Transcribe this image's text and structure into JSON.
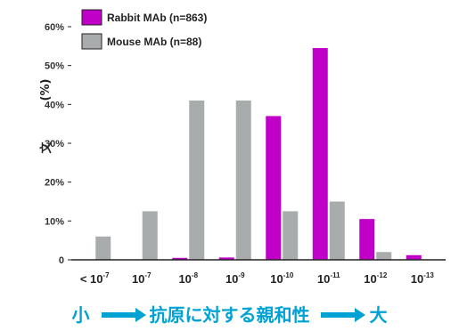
{
  "chart_data": {
    "type": "bar",
    "title": "",
    "xlabel": "",
    "ylabel": "(%)",
    "ylabel_char": "文",
    "ylim": [
      0,
      60
    ],
    "yticks": [
      0,
      10,
      20,
      30,
      40,
      50,
      60
    ],
    "ytick_labels": [
      "0",
      "10%",
      "20%",
      "30%",
      "40%",
      "50%",
      "60%"
    ],
    "grid": false,
    "legend_position": "top-left",
    "categories": [
      "< 10-7",
      "10-7",
      "10-8",
      "10-9",
      "10-10",
      "10-11",
      "10-12",
      "10-13"
    ],
    "category_base": [
      "< 10",
      "10",
      "10",
      "10",
      "10",
      "10",
      "10",
      "10"
    ],
    "category_exp": [
      "-7",
      "-7",
      "-8",
      "-9",
      "-10",
      "-11",
      "-12",
      "-13"
    ],
    "series": [
      {
        "name": "Rabbit MAb (n=863)",
        "color": "#c000c8",
        "values": [
          0,
          0,
          0.5,
          0.6,
          37,
          54.5,
          10.5,
          1.2
        ]
      },
      {
        "name": "Mouse MAb (n=88)",
        "color": "#a9acac",
        "values": [
          6,
          12.5,
          41,
          41,
          12.5,
          15,
          2,
          0
        ]
      }
    ]
  },
  "caption": {
    "left": "小",
    "middle": "抗原に対する親和性",
    "right": "大"
  }
}
